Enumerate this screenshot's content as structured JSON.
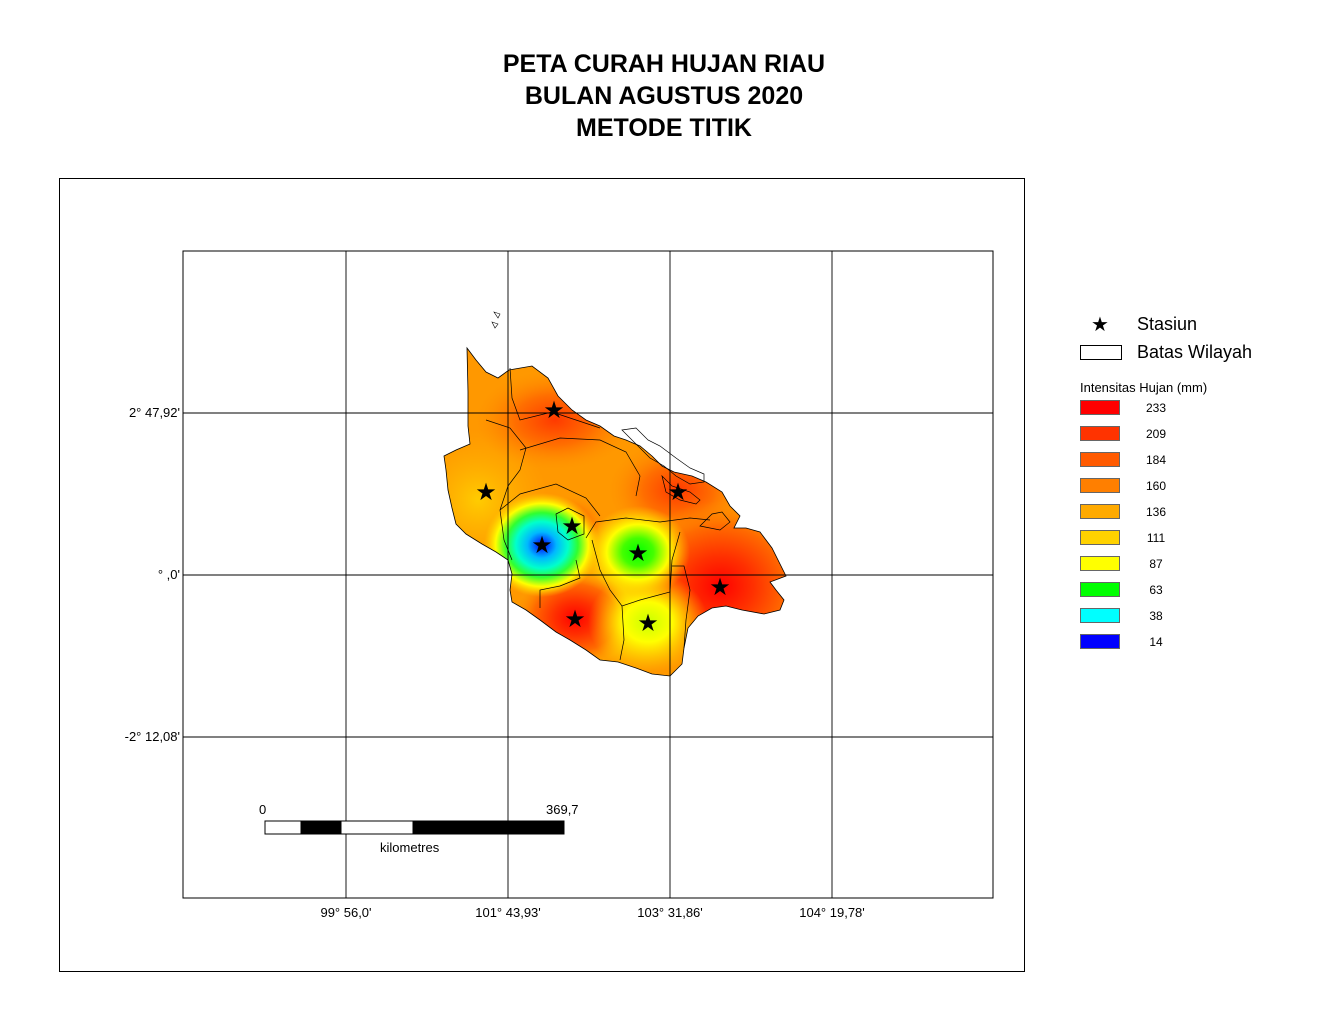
{
  "title": {
    "line1": "PETA CURAH HUJAN RIAU",
    "line2": "BULAN AGUSTUS 2020",
    "line3": "METODE TITIK"
  },
  "graticule": {
    "lat_labels": [
      "2° 47,92'",
      "° ,0'",
      "-2° 12,08'"
    ],
    "lon_labels": [
      "99° 56,0'",
      "101° 43,93'",
      "103° 31,86'",
      "104° 19,78'"
    ]
  },
  "scale_bar": {
    "start_label": "0",
    "end_label": "369,7",
    "unit_label": "kilometres"
  },
  "legend": {
    "station_label": "Stasiun",
    "boundary_label": "Batas Wilayah",
    "intensity_title": "Intensitas Hujan (mm)",
    "classes": [
      {
        "value": "233",
        "color": "#ff0000"
      },
      {
        "value": "209",
        "color": "#ff3300"
      },
      {
        "value": "184",
        "color": "#ff5a00"
      },
      {
        "value": "160",
        "color": "#ff7f00"
      },
      {
        "value": "136",
        "color": "#ffaa00"
      },
      {
        "value": "111",
        "color": "#ffd200"
      },
      {
        "value": "87",
        "color": "#ffff00"
      },
      {
        "value": "63",
        "color": "#00ff00"
      },
      {
        "value": "38",
        "color": "#00ffff"
      },
      {
        "value": "14",
        "color": "#0000ff"
      }
    ]
  }
}
